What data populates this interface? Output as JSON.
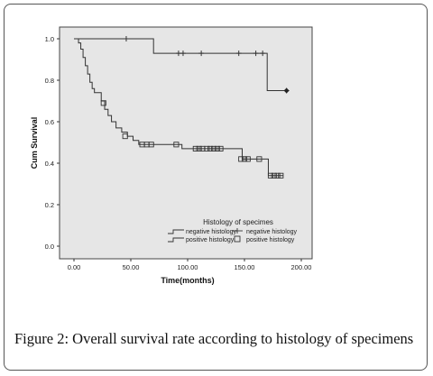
{
  "figure_caption": {
    "label": "Figure 2:",
    "text": "Overall survival rate according to histology of specimens"
  },
  "chart_data": {
    "type": "line",
    "subtype": "kaplan-meier-step",
    "xlabel": "Time(months)",
    "ylabel": "Cum Survival",
    "xlim": [
      0,
      200
    ],
    "ylim": [
      0,
      1.0
    ],
    "x_ticks": [
      "0.00",
      "50.00",
      "100.00",
      "150.00",
      "200.00"
    ],
    "y_ticks": [
      "0.0",
      "0.2",
      "0.4",
      "0.6",
      "0.8",
      "1.0"
    ],
    "plot_background": "#e6e6e6",
    "grid": false,
    "legend": {
      "title": "Histology of specimes",
      "placement": "bottom-right",
      "entries": [
        {
          "label": "negative histology",
          "kind": "line"
        },
        {
          "label": "negative histology",
          "kind": "censor-plus"
        },
        {
          "label": "positive histology",
          "kind": "line"
        },
        {
          "label": "positive histology",
          "kind": "censor-square"
        }
      ]
    },
    "series": [
      {
        "name": "negative histology",
        "color": "#333333",
        "marker": "plus",
        "steps": [
          [
            0,
            1.0
          ],
          [
            70,
            1.0
          ],
          [
            70,
            0.93
          ],
          [
            170,
            0.93
          ],
          [
            170,
            0.75
          ],
          [
            187,
            0.75
          ]
        ],
        "censored": [
          [
            46,
            1.0
          ],
          [
            92,
            0.93
          ],
          [
            96,
            0.93
          ],
          [
            112,
            0.93
          ],
          [
            145,
            0.93
          ],
          [
            160,
            0.93
          ],
          [
            166,
            0.93
          ],
          [
            187,
            0.75
          ]
        ]
      },
      {
        "name": "positive histology",
        "color": "#333333",
        "marker": "square",
        "steps": [
          [
            0,
            1.0
          ],
          [
            4,
            1.0
          ],
          [
            4,
            0.98
          ],
          [
            6,
            0.98
          ],
          [
            6,
            0.95
          ],
          [
            8,
            0.95
          ],
          [
            8,
            0.91
          ],
          [
            10,
            0.91
          ],
          [
            10,
            0.87
          ],
          [
            12,
            0.87
          ],
          [
            12,
            0.83
          ],
          [
            14,
            0.83
          ],
          [
            14,
            0.79
          ],
          [
            16,
            0.79
          ],
          [
            16,
            0.76
          ],
          [
            18,
            0.76
          ],
          [
            18,
            0.74
          ],
          [
            24,
            0.74
          ],
          [
            24,
            0.7
          ],
          [
            27,
            0.7
          ],
          [
            27,
            0.66
          ],
          [
            30,
            0.66
          ],
          [
            30,
            0.63
          ],
          [
            33,
            0.63
          ],
          [
            33,
            0.6
          ],
          [
            37,
            0.6
          ],
          [
            37,
            0.57
          ],
          [
            42,
            0.57
          ],
          [
            42,
            0.55
          ],
          [
            47,
            0.55
          ],
          [
            47,
            0.53
          ],
          [
            52,
            0.53
          ],
          [
            52,
            0.51
          ],
          [
            57,
            0.51
          ],
          [
            57,
            0.49
          ],
          [
            95,
            0.49
          ],
          [
            95,
            0.47
          ],
          [
            148,
            0.47
          ],
          [
            148,
            0.42
          ],
          [
            171,
            0.42
          ],
          [
            171,
            0.34
          ],
          [
            184,
            0.34
          ]
        ],
        "censored": [
          [
            26,
            0.69
          ],
          [
            45,
            0.53
          ],
          [
            60,
            0.49
          ],
          [
            64,
            0.49
          ],
          [
            68,
            0.49
          ],
          [
            90,
            0.49
          ],
          [
            107,
            0.47
          ],
          [
            110,
            0.47
          ],
          [
            113,
            0.47
          ],
          [
            117,
            0.47
          ],
          [
            120,
            0.47
          ],
          [
            123,
            0.47
          ],
          [
            126,
            0.47
          ],
          [
            129,
            0.47
          ],
          [
            147,
            0.42
          ],
          [
            150,
            0.42
          ],
          [
            153,
            0.42
          ],
          [
            163,
            0.42
          ],
          [
            173,
            0.34
          ],
          [
            176,
            0.34
          ],
          [
            179,
            0.34
          ],
          [
            182,
            0.34
          ]
        ]
      }
    ]
  }
}
